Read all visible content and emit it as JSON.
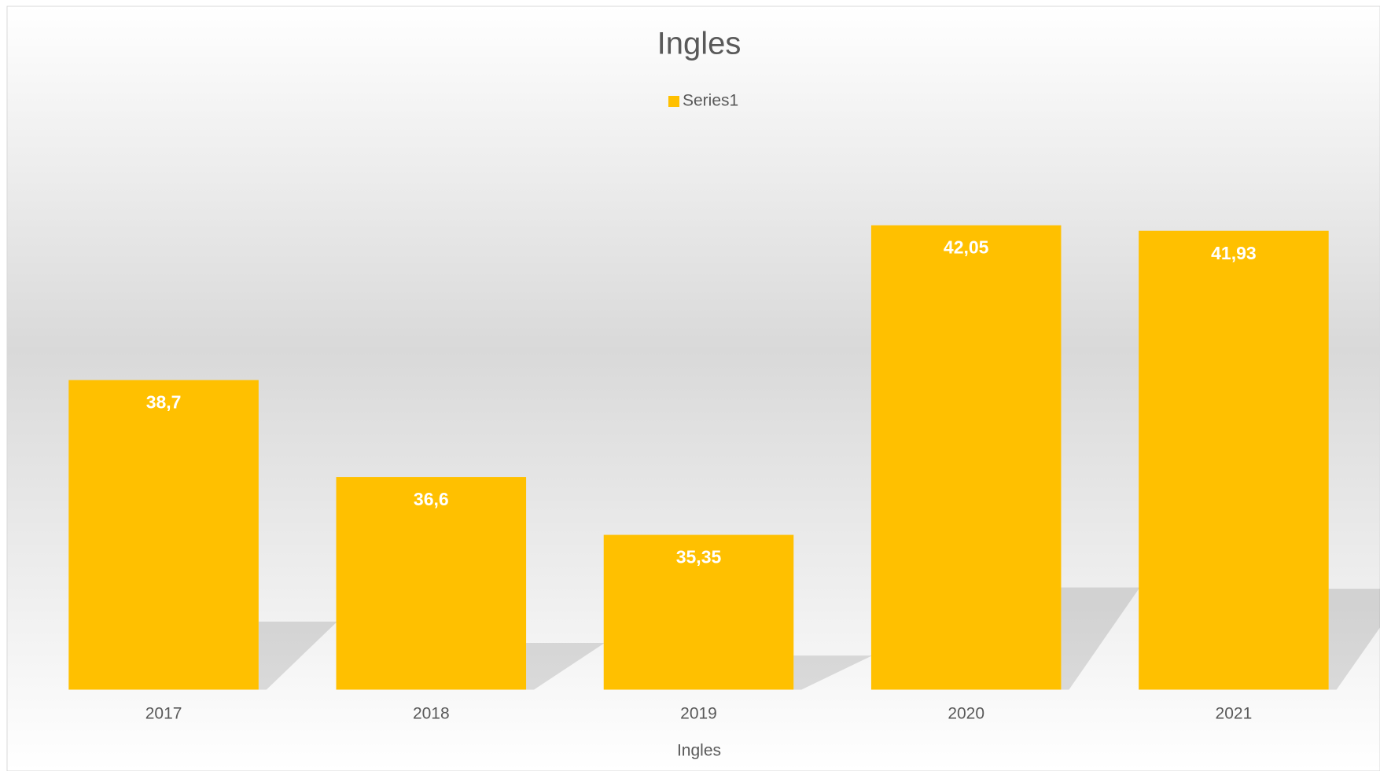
{
  "chart_data": {
    "type": "bar",
    "title": "Ingles",
    "categories": [
      "2017",
      "2018",
      "2019",
      "2020",
      "2021"
    ],
    "series": [
      {
        "name": "Series1",
        "color": "#ffc000",
        "values": [
          38.7,
          36.6,
          35.35,
          42.05,
          41.93
        ],
        "value_labels": [
          "38,7",
          "36,6",
          "35,35",
          "42,05",
          "41,93"
        ]
      }
    ],
    "x_label": "Ingles",
    "ylim": [
      32,
      44
    ],
    "legend": "top"
  }
}
